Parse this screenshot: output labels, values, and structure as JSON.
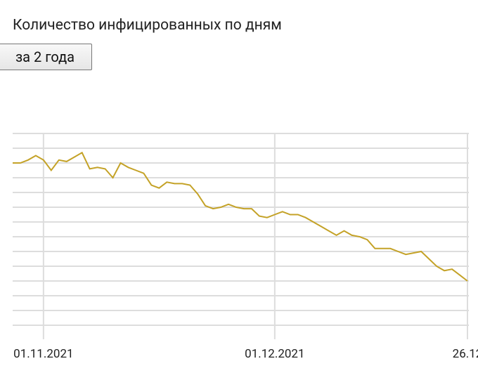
{
  "controls": {
    "period_button": "за 2 года"
  },
  "chart_data": {
    "type": "line",
    "title": "Количество инфицированных по дням",
    "categories": [
      null,
      null,
      null,
      null,
      "01.11.2021",
      null,
      null,
      null,
      null,
      null,
      null,
      null,
      null,
      null,
      null,
      null,
      null,
      null,
      null,
      null,
      null,
      null,
      null,
      null,
      null,
      null,
      null,
      null,
      null,
      null,
      null,
      null,
      null,
      null,
      "01.12.2021",
      null,
      null,
      null,
      null,
      null,
      null,
      null,
      null,
      null,
      null,
      null,
      null,
      null,
      null,
      null,
      null,
      null,
      null,
      null,
      null,
      null,
      null,
      null,
      null,
      "26.12"
    ],
    "series": [
      {
        "color": "#c4a227",
        "values": [
          11.0,
          11.0,
          11.2,
          11.5,
          11.2,
          10.5,
          11.2,
          11.1,
          11.4,
          11.7,
          10.6,
          10.7,
          10.6,
          10.0,
          11.0,
          10.7,
          10.5,
          10.3,
          9.5,
          9.3,
          9.7,
          9.6,
          9.6,
          9.5,
          8.9,
          8.1,
          7.9,
          8.0,
          8.2,
          8.0,
          7.9,
          7.9,
          7.4,
          7.3,
          7.5,
          7.7,
          7.5,
          7.5,
          7.3,
          7.0,
          6.7,
          6.4,
          6.1,
          6.4,
          6.1,
          6.0,
          5.8,
          5.2,
          5.2,
          5.2,
          5.0,
          4.8,
          4.9,
          5.0,
          4.5,
          4.0,
          3.7,
          3.8,
          3.4,
          3.0
        ]
      }
    ],
    "ylim": [
      0,
      13
    ],
    "yticks": [
      0,
      1,
      2,
      3,
      4,
      5,
      6,
      7,
      8,
      9,
      10,
      11,
      12,
      13
    ],
    "grid": true
  }
}
